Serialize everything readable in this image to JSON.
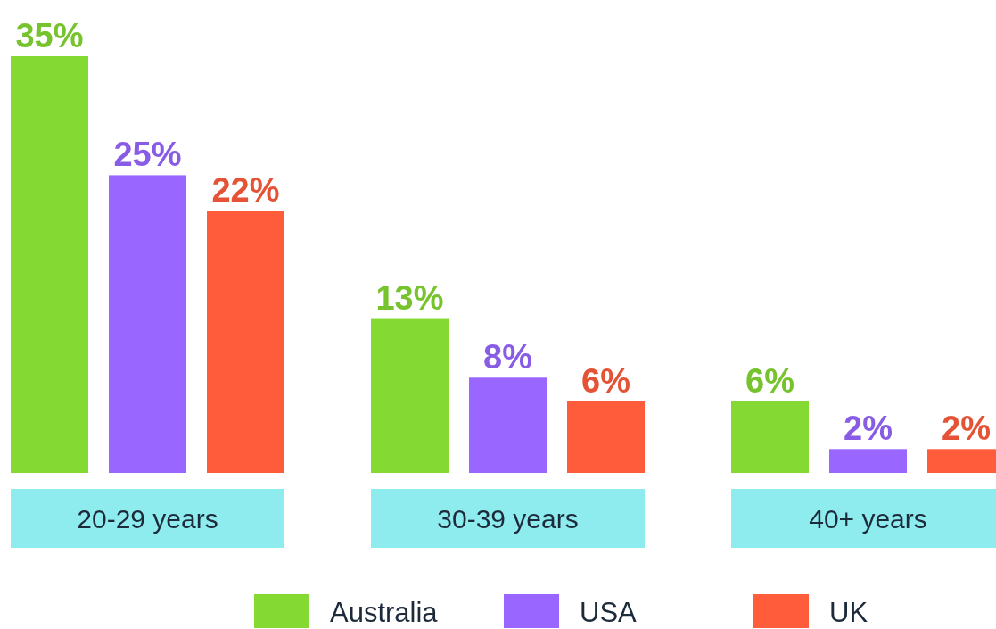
{
  "chart_data": {
    "type": "bar",
    "categories": [
      "20-29 years",
      "30-39 years",
      "40+ years"
    ],
    "series": [
      {
        "name": "Australia",
        "color": "#84d932",
        "values": [
          35,
          13,
          6
        ],
        "value_labels": [
          "35%",
          "13%",
          "6%"
        ]
      },
      {
        "name": "USA",
        "color": "#9966ff",
        "values": [
          25,
          8,
          2
        ],
        "value_labels": [
          "25%",
          "8%",
          "2%"
        ]
      },
      {
        "name": "UK",
        "color": "#ff5c3c",
        "values": [
          22,
          6,
          2
        ],
        "value_labels": [
          "22%",
          "6%",
          "2%"
        ]
      }
    ],
    "legend": "bottom"
  }
}
